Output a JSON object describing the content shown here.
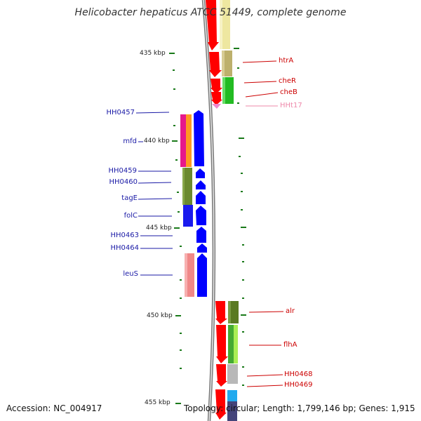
{
  "title": "Helicobacter hepaticus ATCC 51449, complete genome",
  "kbp_labels": [
    "435 kbp",
    "440 kbp",
    "445 kbp",
    "450 kbp",
    "455 kbp"
  ],
  "left_genes": [
    "HH0457",
    "mfd",
    "HH0459",
    "HH0460",
    "tagE",
    "folC",
    "HH0463",
    "HH0464",
    "leuS"
  ],
  "right_genes": [
    "htrA",
    "cheR",
    "cheB",
    "HHt17",
    "alr",
    "flhA",
    "HH0468",
    "HH0469"
  ],
  "footer": {
    "accession": "Accession: NC_004917",
    "topology": "Topology: circular; Length: 1,799,146 bp; Genes: 1,915"
  },
  "colors": {
    "forward_strand": "#ff0000",
    "reverse_strand": "#0000ff",
    "backbone": "#7a7a7a",
    "tick": "#1a7a1a",
    "left_label": "#1a1aa6",
    "right_label": "#cc0000"
  }
}
